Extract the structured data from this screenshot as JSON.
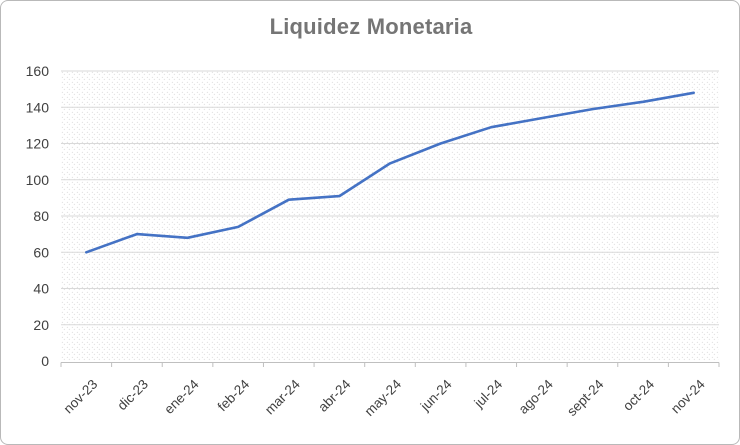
{
  "chart_title": "Liquidez Monetaria",
  "chart_data": {
    "type": "line",
    "title": "Liquidez Monetaria",
    "categories": [
      "nov-23",
      "dic-23",
      "ene-24",
      "feb-24",
      "mar-24",
      "abr-24",
      "may-24",
      "jun-24",
      "jul-24",
      "ago-24",
      "sept-24",
      "oct-24",
      "nov-24"
    ],
    "series": [
      {
        "name": "Liquidez Monetaria",
        "values": [
          60,
          70,
          68,
          74,
          89,
          91,
          109,
          120,
          129,
          134,
          139,
          143,
          148
        ]
      }
    ],
    "xlabel": "",
    "ylabel": "",
    "ylim": [
      0,
      160
    ],
    "y_tick_step": 20,
    "y_ticks": [
      0,
      20,
      40,
      60,
      80,
      100,
      120,
      140,
      160
    ],
    "grid": "horizontal",
    "legend": "none",
    "plot_background": "light-downward-diagonal-hatch",
    "colors": {
      "line": "#4472C4",
      "gridline": "#D9D9D9",
      "axis_line": "#BFBFBF",
      "tick_label": "#404040",
      "title": "#757575",
      "hatch": "#E0E0E0",
      "frame_border": "#B9B9B9",
      "background": "#FFFFFF"
    }
  }
}
